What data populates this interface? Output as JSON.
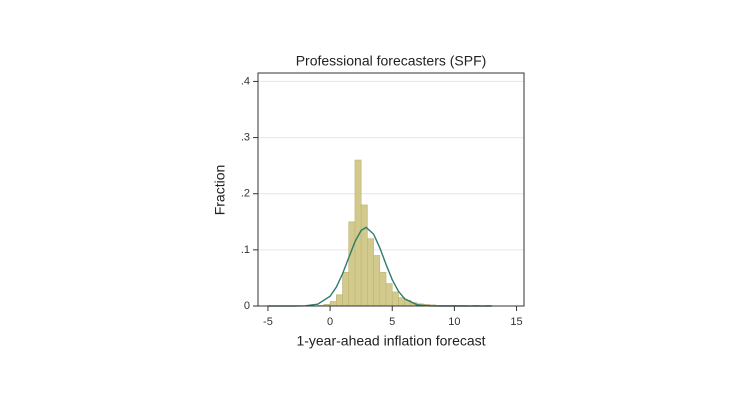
{
  "chart_data": {
    "type": "histogram",
    "title": "Professional forecasters (SPF)",
    "x_label": "1-year-ahead inflation forecast",
    "y_label": "Fraction",
    "bins": [
      -1,
      -0.5,
      0,
      0.5,
      1,
      1.5,
      2,
      2.5,
      3,
      3.5,
      4,
      4.5,
      5,
      5.5,
      6,
      6.5,
      7,
      7.5,
      8,
      8.5,
      9,
      9.5,
      10,
      10.5,
      11,
      11.5,
      12,
      12.5,
      13
    ],
    "values": [
      0.001,
      0.003,
      0.008,
      0.02,
      0.06,
      0.15,
      0.26,
      0.18,
      0.12,
      0.09,
      0.06,
      0.04,
      0.025,
      0.015,
      0.01,
      0.006,
      0.004,
      0.003,
      0.002,
      0.001,
      0.001,
      0.001,
      0.001,
      0.001,
      0,
      0.001,
      0,
      0.001
    ],
    "color": "#d2ca8c",
    "edge_color": "#bdb473",
    "density": {
      "color": "#2e7b6c",
      "x": [
        -5,
        -3,
        -2,
        -1,
        0,
        0.5,
        1,
        1.5,
        2,
        2.5,
        2.9,
        3.5,
        4,
        4.5,
        5,
        5.5,
        6,
        7,
        8,
        9,
        13
      ],
      "values": [
        0,
        0,
        0.0004,
        0.0032,
        0.0174,
        0.0336,
        0.0572,
        0.0861,
        0.1145,
        0.1346,
        0.14,
        0.128,
        0.1037,
        0.0742,
        0.0469,
        0.0262,
        0.0129,
        0.0022,
        0.0002,
        0,
        0
      ]
    },
    "xlim": [
      -5.8,
      15.6
    ],
    "xticks": [
      -5,
      0,
      5,
      10,
      15
    ],
    "ylim": [
      0,
      0.415
    ],
    "yticks": [
      0,
      {
        "value": 0.1,
        "label": ".1"
      },
      {
        "value": 0.2,
        "label": ".2"
      },
      {
        "value": 0.3,
        "label": ".3"
      },
      {
        "value": 0.4,
        "label": ".4"
      }
    ],
    "grid": true
  }
}
